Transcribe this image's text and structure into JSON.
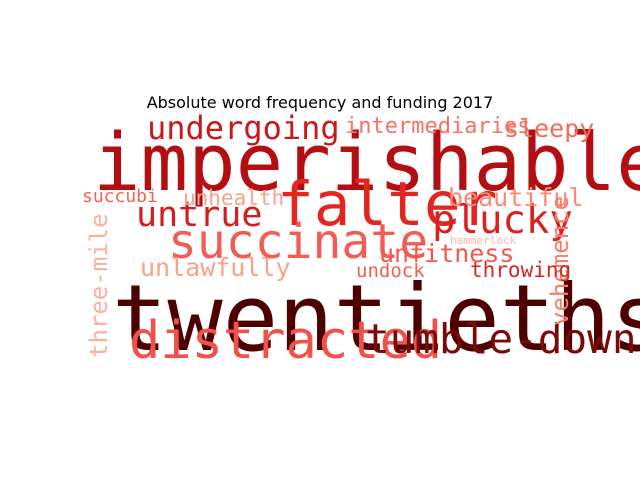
{
  "chart_data": {
    "type": "wordcloud",
    "title": "Absolute word frequency and funding 2017",
    "colormap": "Reds",
    "words": [
      {
        "text": "twentieths",
        "weight": 1.0,
        "color": "#4d0000",
        "vertical": false
      },
      {
        "text": "imperishable",
        "weight": 0.86,
        "color": "#b30f12",
        "vertical": false
      },
      {
        "text": "falter",
        "weight": 0.66,
        "color": "#e3251f",
        "vertical": false
      },
      {
        "text": "distracted",
        "weight": 0.56,
        "color": "#f0514a",
        "vertical": false
      },
      {
        "text": "succinate",
        "weight": 0.52,
        "color": "#f25c54",
        "vertical": false
      },
      {
        "text": "tumble-down",
        "weight": 0.45,
        "color": "#7a0a0a",
        "vertical": false
      },
      {
        "text": "plucky",
        "weight": 0.42,
        "color": "#dc1f1f",
        "vertical": false
      },
      {
        "text": "untrue",
        "weight": 0.38,
        "color": "#d11d1d",
        "vertical": false
      },
      {
        "text": "undergoing",
        "weight": 0.35,
        "color": "#c8181b",
        "vertical": false
      },
      {
        "text": "beautiful",
        "weight": 0.27,
        "color": "#fb8a74",
        "vertical": false
      },
      {
        "text": "unfitness",
        "weight": 0.27,
        "color": "#f05a4e",
        "vertical": false
      },
      {
        "text": "sleepy",
        "weight": 0.27,
        "color": "#f36b5c",
        "vertical": false
      },
      {
        "text": "unlawfully",
        "weight": 0.27,
        "color": "#fca08a",
        "vertical": false
      },
      {
        "text": "vehemence",
        "weight": 0.26,
        "color": "#fb7c68",
        "vertical": true
      },
      {
        "text": "three-mile",
        "weight": 0.26,
        "color": "#fcb0a0",
        "vertical": true
      },
      {
        "text": "intermediaries",
        "weight": 0.24,
        "color": "#f47466",
        "vertical": false
      },
      {
        "text": "unhealth",
        "weight": 0.23,
        "color": "#fca08e",
        "vertical": false
      },
      {
        "text": "throwing",
        "weight": 0.23,
        "color": "#d42a24",
        "vertical": false
      },
      {
        "text": "undock",
        "weight": 0.21,
        "color": "#f0604f",
        "vertical": false
      },
      {
        "text": "succubi",
        "weight": 0.2,
        "color": "#f06456",
        "vertical": false
      },
      {
        "text": "hammerlock",
        "weight": 0.12,
        "color": "#fcb8aa",
        "vertical": false
      }
    ]
  }
}
